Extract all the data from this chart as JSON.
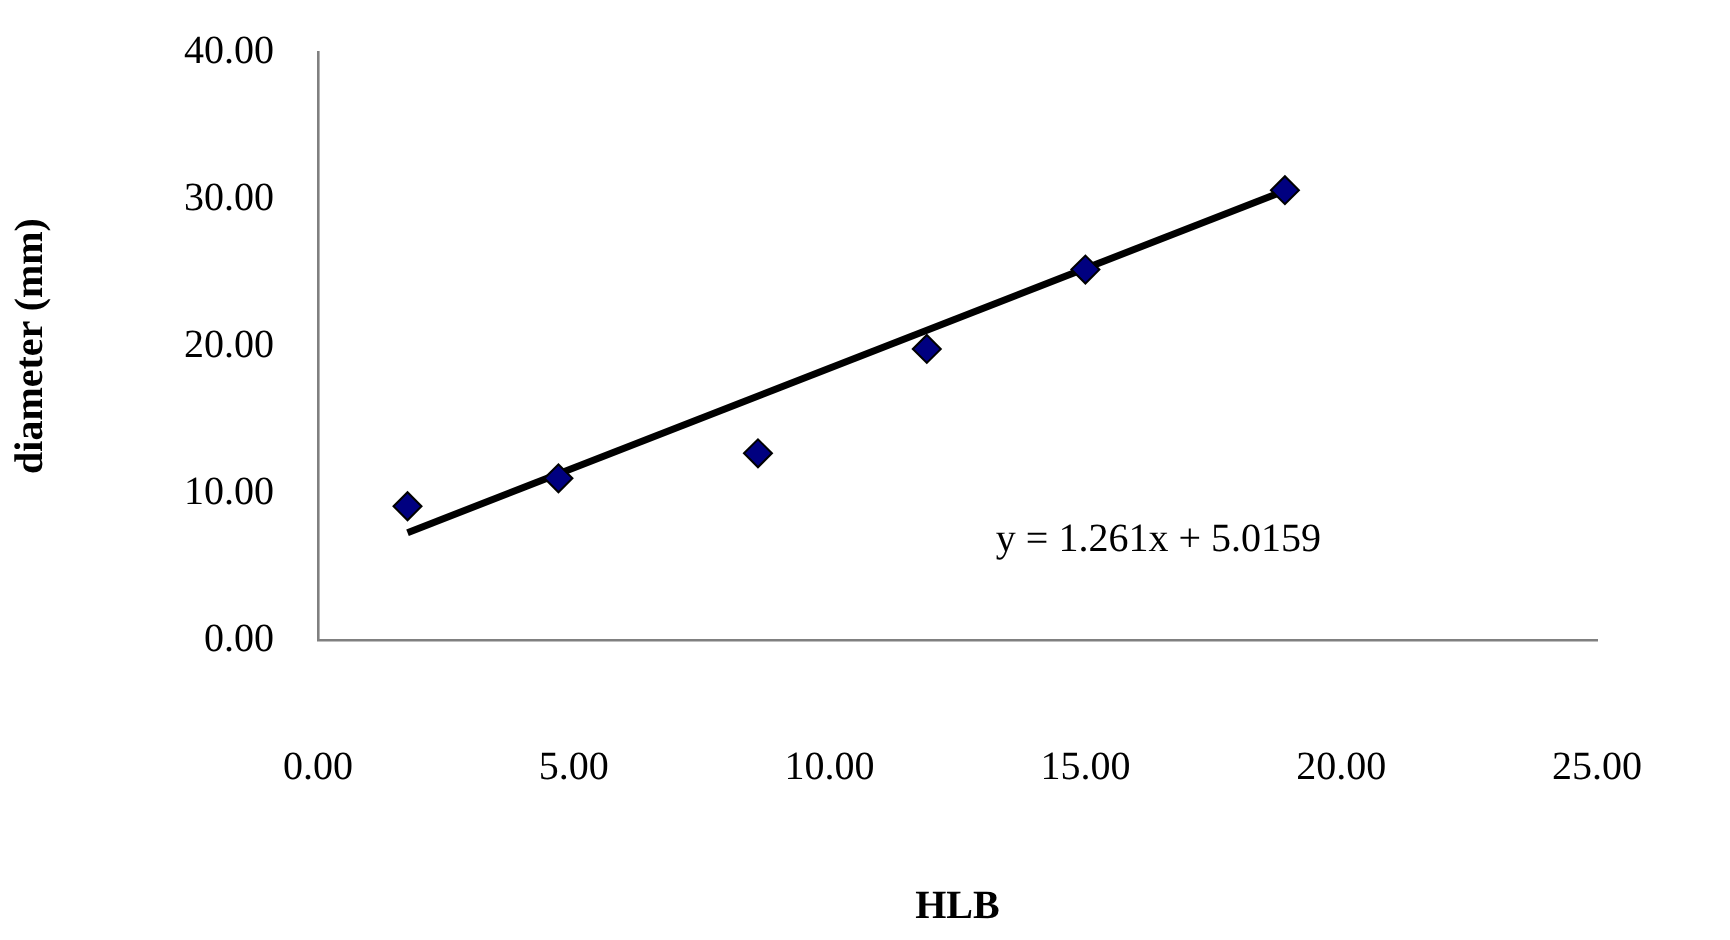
{
  "chart_data": {
    "type": "scatter",
    "xlabel": "HLB",
    "ylabel": "diameter (mm)",
    "xlim": [
      0,
      25
    ],
    "xticks": [
      {
        "value": 0,
        "label": "0.00"
      },
      {
        "value": 5,
        "label": "5.00"
      },
      {
        "value": 10,
        "label": "10.00"
      },
      {
        "value": 15,
        "label": "15.00"
      },
      {
        "value": 20,
        "label": "20.00"
      },
      {
        "value": 25,
        "label": "25.00"
      }
    ],
    "ylim": [
      0,
      40
    ],
    "yticks": [
      {
        "value": 0,
        "label": "0.00"
      },
      {
        "value": 10,
        "label": "10.00"
      },
      {
        "value": 20,
        "label": "20.00"
      },
      {
        "value": 30,
        "label": "30.00"
      },
      {
        "value": 40,
        "label": "40.00"
      }
    ],
    "grid": false,
    "legend": false,
    "marker": "diamond",
    "series": [
      {
        "type": "scatter",
        "color": "#000080",
        "x": [
          1.75,
          4.7,
          8.6,
          11.9,
          15.0,
          18.9
        ],
        "values": [
          9.1,
          11.0,
          12.7,
          19.8,
          25.2,
          30.6
        ]
      },
      {
        "type": "line",
        "color": "#000000",
        "marker": "none",
        "line_style": "solid",
        "x": [
          1.75,
          18.85
        ],
        "values": [
          7.3,
          30.5
        ]
      }
    ],
    "annotations": [
      "y = 1.261x + 5.0159"
    ]
  }
}
